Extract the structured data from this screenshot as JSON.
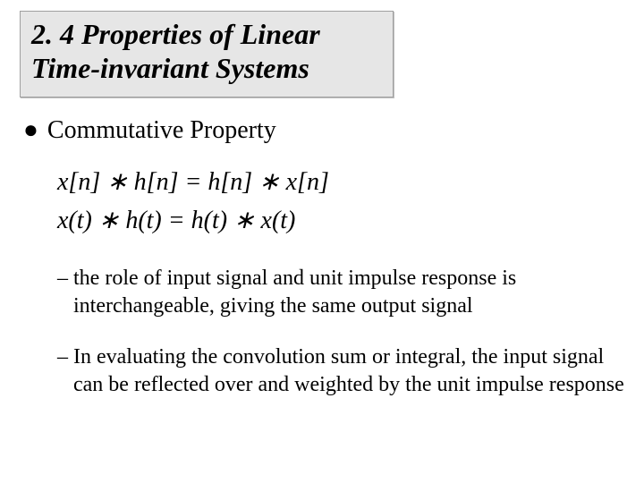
{
  "colors": {
    "title_bg": "#e6e6e6",
    "title_border": "#a0a0a0",
    "text": "#000000",
    "page_bg": "#ffffff"
  },
  "typography": {
    "title_fontsize_pt": 32,
    "bullet_fontsize_pt": 28,
    "equation_fontsize_pt": 28,
    "subbullet_fontsize_pt": 24,
    "font_family": "Times New Roman",
    "title_style": "bold italic",
    "equation_style": "italic"
  },
  "title": "2. 4 Properties of Linear\n       Time-invariant Systems",
  "bullet": {
    "marker": "●",
    "text": "Commutative Property"
  },
  "equations": {
    "line1": "x[n] ∗ h[n] = h[n] ∗ x[n]",
    "line2": "x(t) ∗ h(t) = h(t) ∗ x(t)"
  },
  "sub_items": [
    {
      "marker": "–",
      "text": "the role of input signal and unit impulse response is interchangeable, giving the same output signal"
    },
    {
      "marker": "–",
      "text": "In evaluating the convolution sum or integral, the input signal can be reflected over and weighted by the unit impulse response"
    }
  ]
}
